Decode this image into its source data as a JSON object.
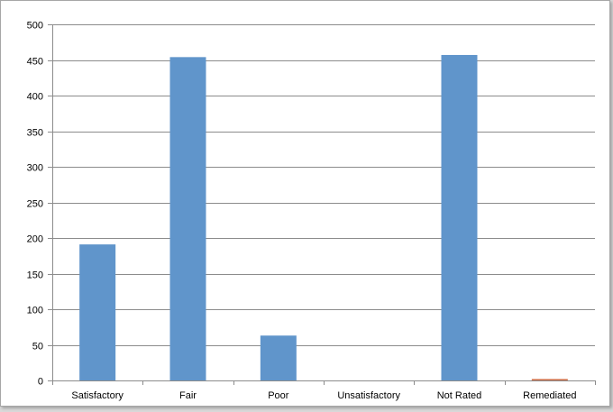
{
  "chart_data": {
    "type": "bar",
    "categories": [
      "Satisfactory",
      "Fair",
      "Poor",
      "Unsatisfactory",
      "Not Rated",
      "Remediated"
    ],
    "values": [
      191,
      454,
      63,
      0,
      457,
      2
    ],
    "bar_colors": [
      "#6095cb",
      "#6095cb",
      "#6095cb",
      "#6095cb",
      "#6095cb",
      "#d0714b"
    ],
    "ylim": [
      0,
      500
    ],
    "yticks": [
      0,
      50,
      100,
      150,
      200,
      250,
      300,
      350,
      400,
      450,
      500
    ],
    "ytick_labels": [
      "0",
      "50",
      "100",
      "150",
      "200",
      "250",
      "300",
      "350",
      "400",
      "450",
      "500"
    ],
    "grid": true,
    "title": "",
    "xlabel": "",
    "ylabel": ""
  },
  "colors": {
    "bar": "#6095cb",
    "accent_bar": "#d0714b",
    "grid": "#8c8c8c",
    "axis": "#8c8c8c"
  }
}
